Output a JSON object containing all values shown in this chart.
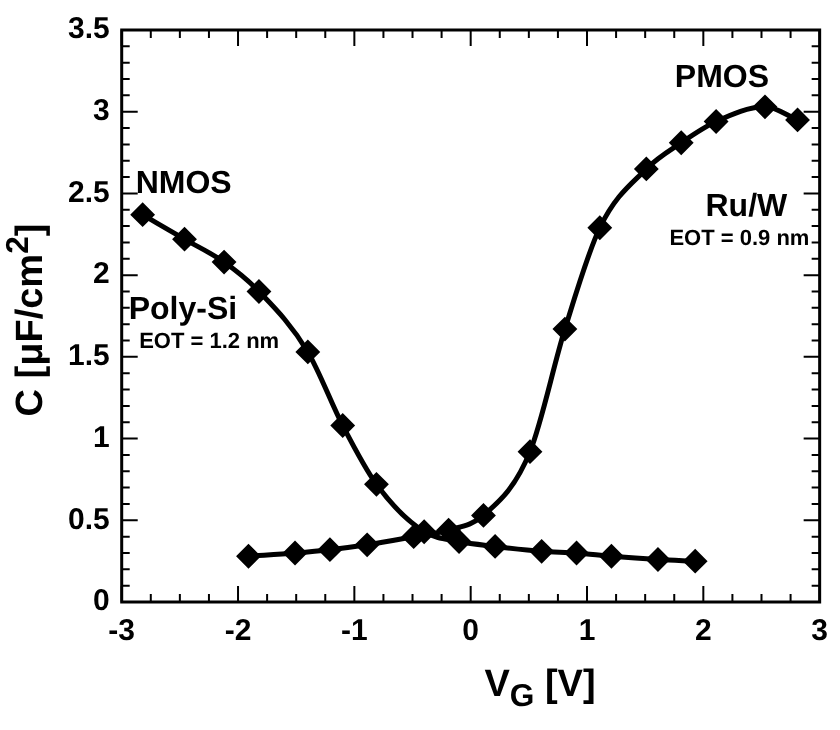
{
  "chart_data": {
    "type": "line",
    "xlabel": "V$_{G}$ [V]",
    "ylabel": "C [μF/cm$^{2}$]",
    "xlim": [
      -3,
      3
    ],
    "ylim": [
      0,
      3.5
    ],
    "xticks": [
      -3,
      {
        "value": -2.75,
        "label": null
      },
      {
        "value": -2.5,
        "label": null
      },
      {
        "value": -2.25,
        "label": null
      },
      -2,
      {
        "value": -1.75,
        "label": null
      },
      {
        "value": -1.5,
        "label": null
      },
      {
        "value": -1.25,
        "label": null
      },
      -1,
      {
        "value": -0.75,
        "label": null
      },
      {
        "value": -0.5,
        "label": null
      },
      {
        "value": -0.25,
        "label": null
      },
      0,
      {
        "value": 0.25,
        "label": null
      },
      {
        "value": 0.5,
        "label": null
      },
      {
        "value": 0.75,
        "label": null
      },
      1,
      {
        "value": 1.25,
        "label": null
      },
      {
        "value": 1.5,
        "label": null
      },
      {
        "value": 1.75,
        "label": null
      },
      2,
      {
        "value": 2.25,
        "label": null
      },
      {
        "value": 2.5,
        "label": null
      },
      {
        "value": 2.75,
        "label": null
      },
      3
    ],
    "yticks": [
      0,
      {
        "value": 0.1,
        "label": null
      },
      {
        "value": 0.2,
        "label": null
      },
      {
        "value": 0.3,
        "label": null
      },
      {
        "value": 0.4,
        "label": null
      },
      0.5,
      {
        "value": 0.6,
        "label": null
      },
      {
        "value": 0.7,
        "label": null
      },
      {
        "value": 0.8,
        "label": null
      },
      {
        "value": 0.9,
        "label": null
      },
      1,
      {
        "value": 1.1,
        "label": null
      },
      {
        "value": 1.2,
        "label": null
      },
      {
        "value": 1.3,
        "label": null
      },
      {
        "value": 1.4,
        "label": null
      },
      1.5,
      {
        "value": 1.6,
        "label": null
      },
      {
        "value": 1.7,
        "label": null
      },
      {
        "value": 1.8,
        "label": null
      },
      {
        "value": 1.9,
        "label": null
      },
      2,
      {
        "value": 2.1,
        "label": null
      },
      {
        "value": 2.2,
        "label": null
      },
      {
        "value": 2.3,
        "label": null
      },
      {
        "value": 2.4,
        "label": null
      },
      2.5,
      {
        "value": 2.6,
        "label": null
      },
      {
        "value": 2.7,
        "label": null
      },
      {
        "value": 2.8,
        "label": null
      },
      {
        "value": 2.9,
        "label": null
      },
      3,
      {
        "value": 3.1,
        "label": null
      },
      {
        "value": 3.2,
        "label": null
      },
      {
        "value": 3.3,
        "label": null
      },
      {
        "value": 3.4,
        "label": null
      },
      3.5
    ],
    "grid": false,
    "legend": false,
    "marker": "diamond",
    "line_style": "solid",
    "series": [
      {
        "color": "#000000",
        "x": [
          -2.82,
          -2.46,
          -2.12,
          -1.82,
          -1.4,
          -1.1,
          -0.81,
          -0.4,
          -0.1,
          0.21,
          0.61,
          0.91,
          1.21,
          1.61,
          1.93
        ],
        "values": [
          2.37,
          2.22,
          2.08,
          1.9,
          1.53,
          1.08,
          0.72,
          0.43,
          0.37,
          0.34,
          0.31,
          0.3,
          0.28,
          0.26,
          0.25
        ]
      },
      {
        "color": "#000000",
        "x": [
          -1.91,
          -1.51,
          -1.21,
          -0.89,
          -0.49,
          -0.19,
          0.11,
          0.51,
          0.81,
          1.11,
          1.51,
          1.81,
          2.11,
          2.53,
          2.81
        ],
        "values": [
          0.28,
          0.3,
          0.32,
          0.35,
          0.4,
          0.44,
          0.53,
          0.92,
          1.67,
          2.29,
          2.65,
          2.81,
          2.94,
          3.03,
          2.95
        ]
      }
    ],
    "annotations": [
      "NMOS",
      "PMOS",
      "Poly-Si",
      "EOT = 1.2 nm",
      "Ru/W",
      "EOT = 0.9 nm"
    ]
  }
}
